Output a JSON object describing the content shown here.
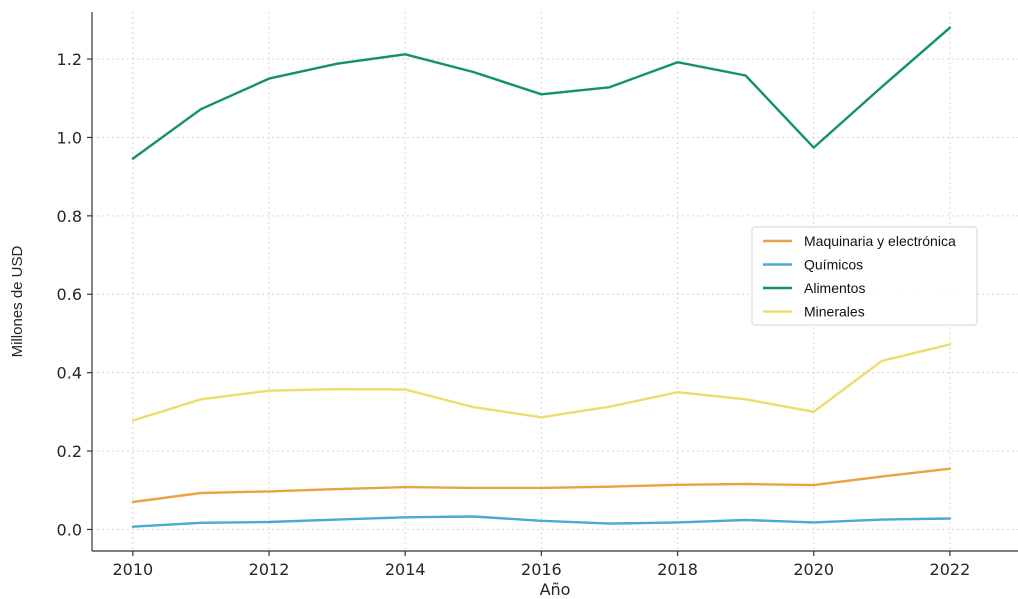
{
  "chart_data": {
    "type": "line",
    "title": "",
    "xlabel": "Año",
    "ylabel": "Millones de USD",
    "x": [
      2010,
      2011,
      2012,
      2013,
      2014,
      2015,
      2016,
      2017,
      2018,
      2019,
      2020,
      2021,
      2022
    ],
    "xticks": [
      "2010",
      "2012",
      "2014",
      "2016",
      "2018",
      "2020",
      "2022"
    ],
    "yticks": [
      "0.0",
      "0.2",
      "0.4",
      "0.6",
      "0.8",
      "1.0",
      "1.2"
    ],
    "xlim": [
      2009.4,
      2023.0
    ],
    "ylim": [
      -0.055,
      1.32
    ],
    "grid": true,
    "legend_position": "center-right",
    "series": [
      {
        "name": "Maquinaria y electrónica",
        "color": "#E8A443",
        "values": [
          0.07,
          0.093,
          0.097,
          0.103,
          0.108,
          0.106,
          0.106,
          0.109,
          0.114,
          0.116,
          0.113,
          0.135,
          0.155
        ]
      },
      {
        "name": "Químicos",
        "color": "#4AA9D6",
        "values": [
          0.007,
          0.017,
          0.019,
          0.025,
          0.031,
          0.033,
          0.022,
          0.015,
          0.018,
          0.024,
          0.018,
          0.025,
          0.028
        ]
      },
      {
        "name": "Alimentos",
        "color": "#15906F",
        "values": [
          0.946,
          1.072,
          1.15,
          1.188,
          1.212,
          1.167,
          1.11,
          1.128,
          1.192,
          1.158,
          0.974,
          1.129,
          1.28
        ]
      },
      {
        "name": "Minerales",
        "color": "#EDDD6B",
        "values": [
          0.278,
          0.332,
          0.354,
          0.358,
          0.357,
          0.312,
          0.286,
          0.313,
          0.35,
          0.332,
          0.3,
          0.43,
          0.472
        ]
      }
    ]
  }
}
